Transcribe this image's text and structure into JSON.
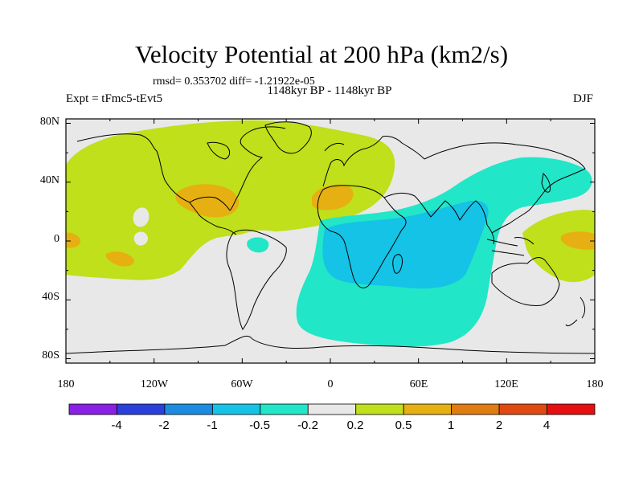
{
  "title": "Velocity Potential at 200 hPa (km2/s)",
  "stats_line": "rmsd= 0.353702 diff= -1.21922e-05",
  "period_line": "1148kyr BP - 1148kyr BP",
  "experiment": "Expt = tFmc5-tEvt5",
  "season": "DJF",
  "axes": {
    "x_ticks": [
      "180",
      "120W",
      "60W",
      "0",
      "60E",
      "120E",
      "180"
    ],
    "y_ticks": [
      "80N",
      "40N",
      "0",
      "40S",
      "80S"
    ]
  },
  "colorbar": {
    "labels": [
      "-4",
      "-2",
      "-1",
      "-0.5",
      "-0.2",
      "0.2",
      "0.5",
      "1",
      "2",
      "4"
    ],
    "colors": [
      "#8a1fe6",
      "#2a3fdc",
      "#1d8be0",
      "#14c3e6",
      "#22e6c8",
      "#e8e8e8",
      "#bfe01a",
      "#e6b012",
      "#e07c12",
      "#e04a10",
      "#e60f0f"
    ]
  },
  "fill_colors": {
    "background": "#e8e8e8",
    "pos_weak": "#bfe01a",
    "pos_mid": "#e6b012",
    "neg_weak": "#22e6c8",
    "neg_mid": "#14c3e6"
  }
}
